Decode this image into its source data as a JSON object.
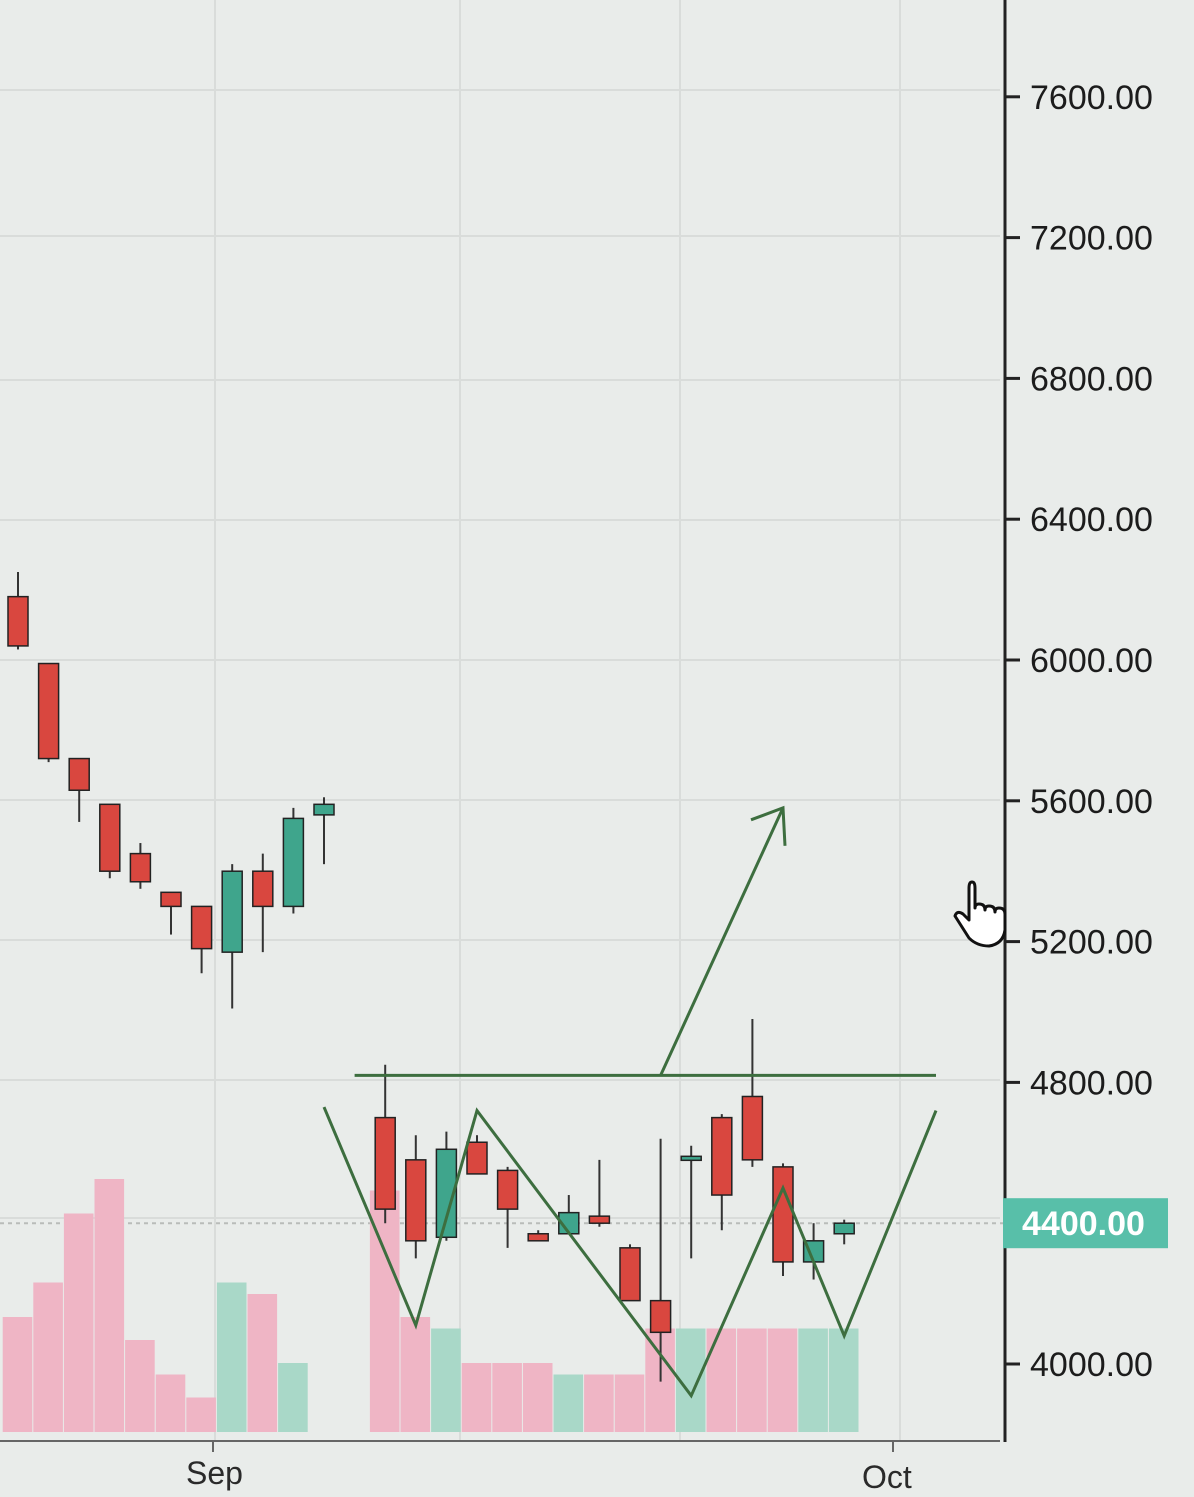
{
  "chart_data": {
    "type": "candlestick",
    "title": "",
    "xlabel": "",
    "ylabel": "",
    "y_axis_position": "right",
    "y_ticks": [
      "7600.00",
      "7200.00",
      "6800.00",
      "6400.00",
      "6000.00",
      "5600.00",
      "5200.00",
      "4800.00",
      "4400.00",
      "4000.00"
    ],
    "x_tick_labels": [
      "Sep",
      "Oct"
    ],
    "current_price_label": "4400.00",
    "current_price": 4400,
    "ylim": [
      3800,
      7800
    ],
    "grid": true,
    "colors": {
      "up": "#3fa58c",
      "down": "#d9473f",
      "volume_up": "#a9d8c8",
      "volume_down": "#efb5c5",
      "pattern_line": "#3d6e3f",
      "price_badge": "#58bfa9"
    },
    "candles": [
      {
        "open": 6180,
        "high": 6250,
        "low": 6030,
        "close": 6040,
        "volume": 1.0
      },
      {
        "open": 5990,
        "high": 5990,
        "low": 5710,
        "close": 5720,
        "volume": 1.3
      },
      {
        "open": 5720,
        "high": 5720,
        "low": 5540,
        "close": 5630,
        "volume": 1.9
      },
      {
        "open": 5590,
        "high": 5590,
        "low": 5380,
        "close": 5400,
        "volume": 2.2
      },
      {
        "open": 5450,
        "high": 5480,
        "low": 5350,
        "close": 5370,
        "volume": 0.8
      },
      {
        "open": 5340,
        "high": 5340,
        "low": 5220,
        "close": 5300,
        "volume": 0.5
      },
      {
        "open": 5300,
        "high": 5300,
        "low": 5110,
        "close": 5180,
        "volume": 0.3
      },
      {
        "open": 5170,
        "high": 5420,
        "low": 5010,
        "close": 5400,
        "volume": 1.3
      },
      {
        "open": 5400,
        "high": 5450,
        "low": 5170,
        "close": 5300,
        "volume": 1.2
      },
      {
        "open": 5300,
        "high": 5580,
        "low": 5280,
        "close": 5550,
        "volume": 0.6
      },
      {
        "open": 5560,
        "high": 5610,
        "low": 5420,
        "close": 5590,
        "volume": 0.0
      },
      {
        "open": 4700,
        "high": 4850,
        "low": 4400,
        "close": 4440,
        "volume": 2.1
      },
      {
        "open": 4580,
        "high": 4650,
        "low": 4300,
        "close": 4350,
        "volume": 1.0
      },
      {
        "open": 4360,
        "high": 4660,
        "low": 4350,
        "close": 4610,
        "volume": 0.9
      },
      {
        "open": 4630,
        "high": 4650,
        "low": 4550,
        "close": 4540,
        "volume": 0.6
      },
      {
        "open": 4550,
        "high": 4560,
        "low": 4330,
        "close": 4440,
        "volume": 0.6
      },
      {
        "open": 4370,
        "high": 4380,
        "low": 4350,
        "close": 4350,
        "volume": 0.6
      },
      {
        "open": 4370,
        "high": 4480,
        "low": 4380,
        "close": 4430,
        "volume": 0.5
      },
      {
        "open": 4420,
        "high": 4580,
        "low": 4390,
        "close": 4400,
        "volume": 0.5
      },
      {
        "open": 4330,
        "high": 4340,
        "low": 4180,
        "close": 4180,
        "volume": 0.5
      },
      {
        "open": 4180,
        "high": 4640,
        "low": 3950,
        "close": 4090,
        "volume": 0.9
      },
      {
        "open": 4590,
        "high": 4620,
        "low": 4300,
        "close": 4590,
        "volume": 0.9
      },
      {
        "open": 4700,
        "high": 4710,
        "low": 4380,
        "close": 4480,
        "volume": 0.9
      },
      {
        "open": 4760,
        "high": 4980,
        "low": 4560,
        "close": 4580,
        "volume": 0.9
      },
      {
        "open": 4560,
        "high": 4570,
        "low": 4250,
        "close": 4290,
        "volume": 0.9
      },
      {
        "open": 4290,
        "high": 4400,
        "low": 4240,
        "close": 4350,
        "volume": 0.9
      },
      {
        "open": 4370,
        "high": 4410,
        "low": 4340,
        "close": 4400,
        "volume": 0.9
      }
    ],
    "pattern_line_data": [
      {
        "x": 10,
        "y": 4730
      },
      {
        "x": 13,
        "y": 4110
      },
      {
        "x": 15,
        "y": 4720
      },
      {
        "x": 22,
        "y": 3910
      },
      {
        "x": 25,
        "y": 4500
      },
      {
        "x": 27,
        "y": 4080
      },
      {
        "x": 30,
        "y": 4720
      }
    ],
    "neckline": {
      "x_start": 11,
      "x_end": 30,
      "value": 4820
    },
    "breakout_arrow": {
      "x_start": 21,
      "x_end": 25,
      "y_start": 4820,
      "y_end": 5580
    }
  }
}
